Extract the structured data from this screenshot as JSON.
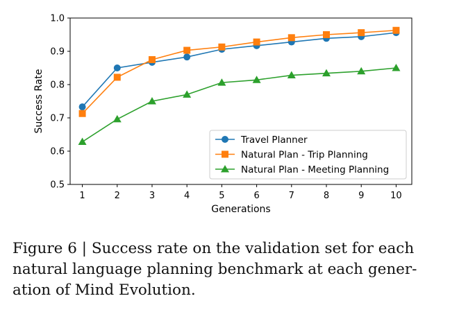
{
  "chart_data": {
    "type": "line",
    "xlabel": "Generations",
    "ylabel": "Success Rate",
    "x": [
      1,
      2,
      3,
      4,
      5,
      6,
      7,
      8,
      9,
      10
    ],
    "xlim": [
      0.65,
      10.45
    ],
    "ylim": [
      0.5,
      1.0
    ],
    "yticks": [
      "0.5",
      "0.6",
      "0.7",
      "0.8",
      "0.9",
      "1.0"
    ],
    "xticks": [
      "1",
      "2",
      "3",
      "4",
      "5",
      "6",
      "7",
      "8",
      "9",
      "10"
    ],
    "legend_position": "lower-right",
    "series": [
      {
        "name": "Travel Planner",
        "color": "#1f77b4",
        "marker": "circle",
        "values": [
          0.733,
          0.85,
          0.867,
          0.883,
          0.906,
          0.917,
          0.928,
          0.939,
          0.944,
          0.956
        ]
      },
      {
        "name": "Natural Plan - Trip Planning",
        "color": "#ff7f0e",
        "marker": "square",
        "values": [
          0.713,
          0.822,
          0.875,
          0.903,
          0.913,
          0.928,
          0.941,
          0.95,
          0.956,
          0.963
        ]
      },
      {
        "name": "Natural Plan - Meeting Planning",
        "color": "#2ca02c",
        "marker": "triangle",
        "values": [
          0.628,
          0.696,
          0.75,
          0.77,
          0.806,
          0.814,
          0.828,
          0.834,
          0.84,
          0.85
        ]
      }
    ]
  },
  "caption": {
    "line1": "Figure 6 | Success rate on the validation set for each",
    "line2": "natural language planning benchmark at each gener-",
    "line3": "ation of Mind Evolution."
  }
}
